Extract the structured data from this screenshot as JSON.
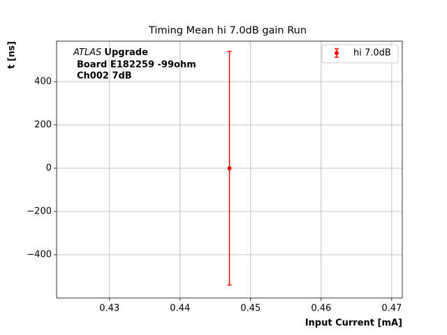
{
  "chart_data": {
    "type": "scatter",
    "title": "Timing Mean hi 7.0dB gain Run",
    "xlabel": "Input Current [mA]",
    "ylabel": "t [ns]",
    "x": [
      0.447
    ],
    "series": [
      {
        "name": "hi 7.0dB",
        "color": "#ff0000",
        "values": [
          0
        ],
        "errors": [
          540
        ]
      }
    ],
    "xlim": [
      0.4225,
      0.4715
    ],
    "xticks": [
      0.43,
      0.44,
      0.45,
      0.46,
      0.47
    ],
    "ylim": [
      -600,
      587
    ],
    "yticks": [
      {
        "value": -400,
        "label": "−400"
      },
      {
        "value": -200,
        "label": "−200"
      },
      0,
      200,
      400
    ],
    "grid": true,
    "legend": "upper right",
    "annotations": [
      "ATLAS",
      "Upgrade",
      "Board E182259 -99ohm",
      "Ch002 7dB"
    ]
  }
}
